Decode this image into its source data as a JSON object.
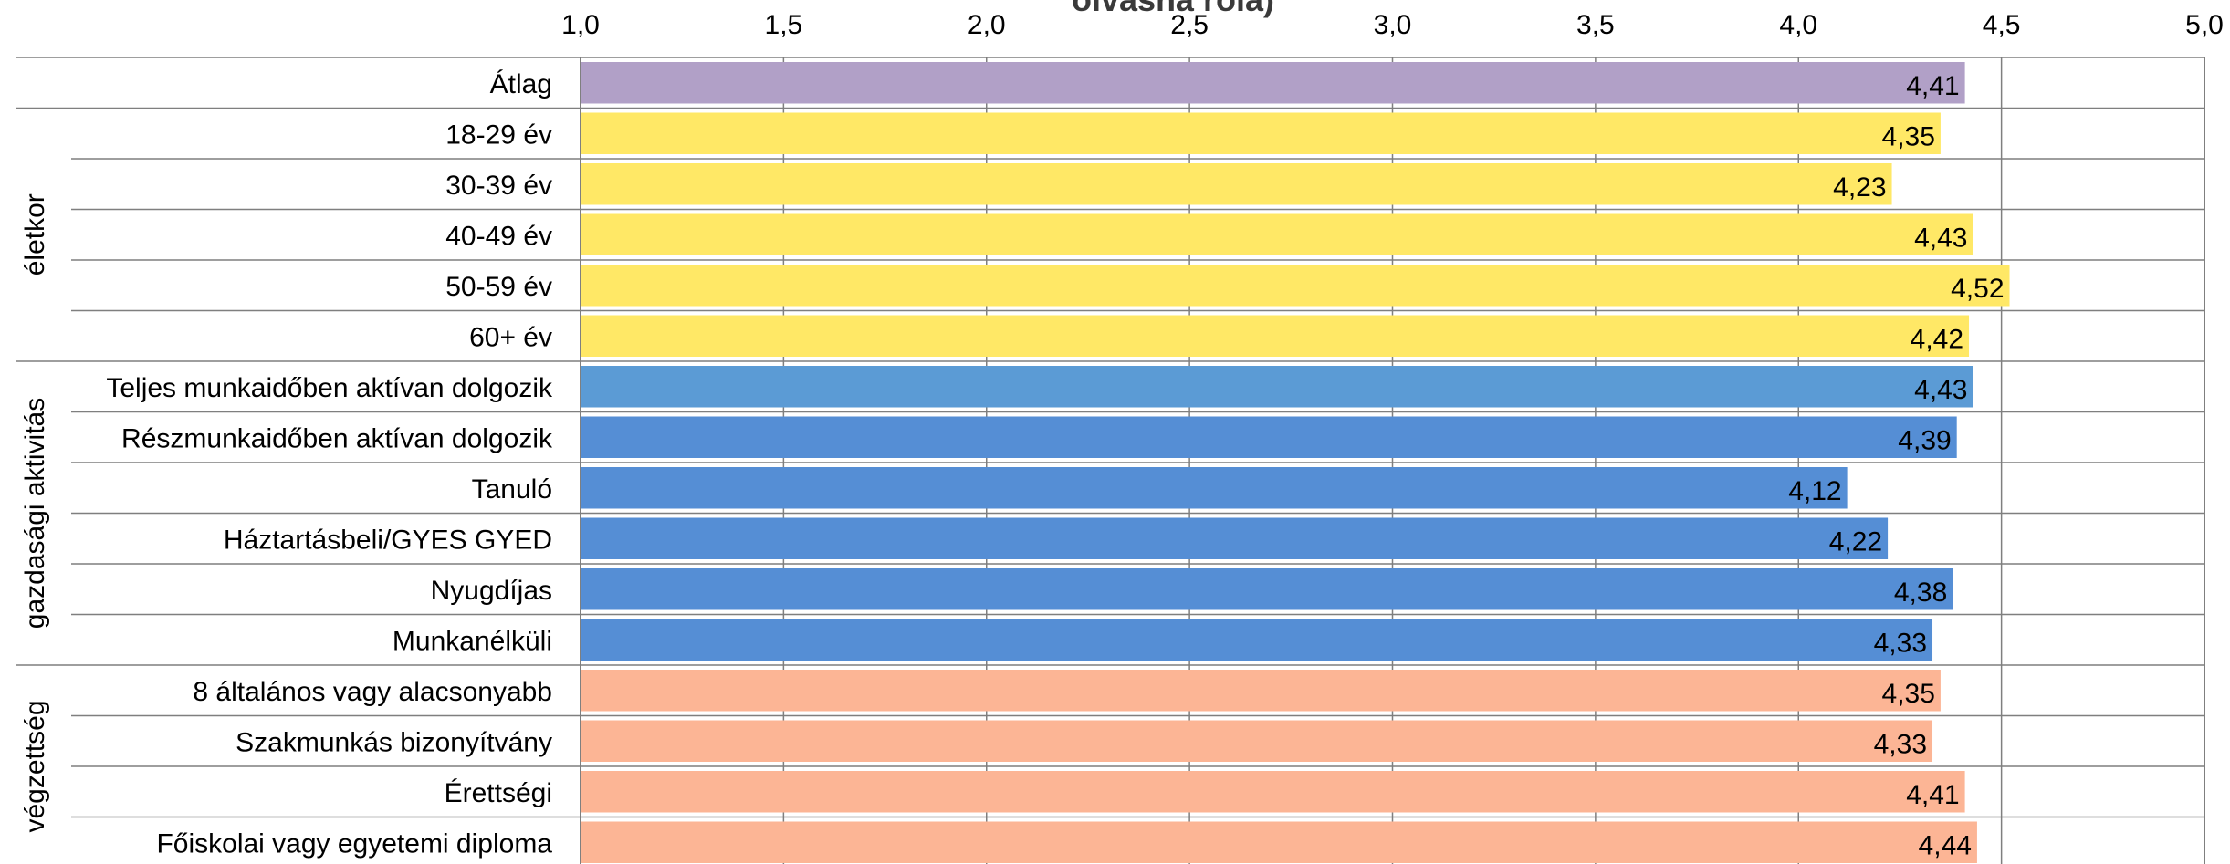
{
  "chart_data": {
    "type": "bar",
    "orientation": "horizontal",
    "title": "olvasná róla)",
    "xlim": [
      1.0,
      5.0
    ],
    "x_ticks": [
      "1,0",
      "1,5",
      "2,0",
      "2,5",
      "3,0",
      "3,5",
      "4,0",
      "4,5",
      "5,0"
    ],
    "x_tick_values": [
      1.0,
      1.5,
      2.0,
      2.5,
      3.0,
      3.5,
      4.0,
      4.5,
      5.0
    ],
    "grid": true,
    "colors": {
      "average": "#b1a0c7",
      "age": "#ffe866",
      "activity": "#558ed5",
      "activity_first": "#5b9bd5",
      "education": "#fcb595",
      "grid": "#7f7f7f"
    },
    "groups": [
      {
        "label": "",
        "rows": [
          {
            "category": "Átlag",
            "value": 4.41,
            "value_label": "4,41",
            "color_key": "average"
          }
        ]
      },
      {
        "label": "életkor",
        "rows": [
          {
            "category": "18-29 év",
            "value": 4.35,
            "value_label": "4,35",
            "color_key": "age"
          },
          {
            "category": "30-39 év",
            "value": 4.23,
            "value_label": "4,23",
            "color_key": "age"
          },
          {
            "category": "40-49 év",
            "value": 4.43,
            "value_label": "4,43",
            "color_key": "age"
          },
          {
            "category": "50-59 év",
            "value": 4.52,
            "value_label": "4,52",
            "color_key": "age"
          },
          {
            "category": "60+ év",
            "value": 4.42,
            "value_label": "4,42",
            "color_key": "age"
          }
        ]
      },
      {
        "label": "gazdasági aktivitás",
        "rows": [
          {
            "category": "Teljes munkaidőben aktívan dolgozik",
            "value": 4.43,
            "value_label": "4,43",
            "color_key": "activity_first"
          },
          {
            "category": "Részmunkaidőben aktívan dolgozik",
            "value": 4.39,
            "value_label": "4,39",
            "color_key": "activity"
          },
          {
            "category": "Tanuló",
            "value": 4.12,
            "value_label": "4,12",
            "color_key": "activity"
          },
          {
            "category": "Háztartásbeli/GYES GYED",
            "value": 4.22,
            "value_label": "4,22",
            "color_key": "activity"
          },
          {
            "category": "Nyugdíjas",
            "value": 4.38,
            "value_label": "4,38",
            "color_key": "activity"
          },
          {
            "category": "Munkanélküli",
            "value": 4.33,
            "value_label": "4,33",
            "color_key": "activity"
          }
        ]
      },
      {
        "label": "végzettség",
        "rows": [
          {
            "category": "8 általános vagy alacsonyabb",
            "value": 4.35,
            "value_label": "4,35",
            "color_key": "education"
          },
          {
            "category": "Szakmunkás bizonyítvány",
            "value": 4.33,
            "value_label": "4,33",
            "color_key": "education"
          },
          {
            "category": "Érettségi",
            "value": 4.41,
            "value_label": "4,41",
            "color_key": "education"
          },
          {
            "category": "Főiskolai vagy egyetemi diploma",
            "value": 4.44,
            "value_label": "4,44",
            "color_key": "education"
          }
        ]
      }
    ]
  }
}
